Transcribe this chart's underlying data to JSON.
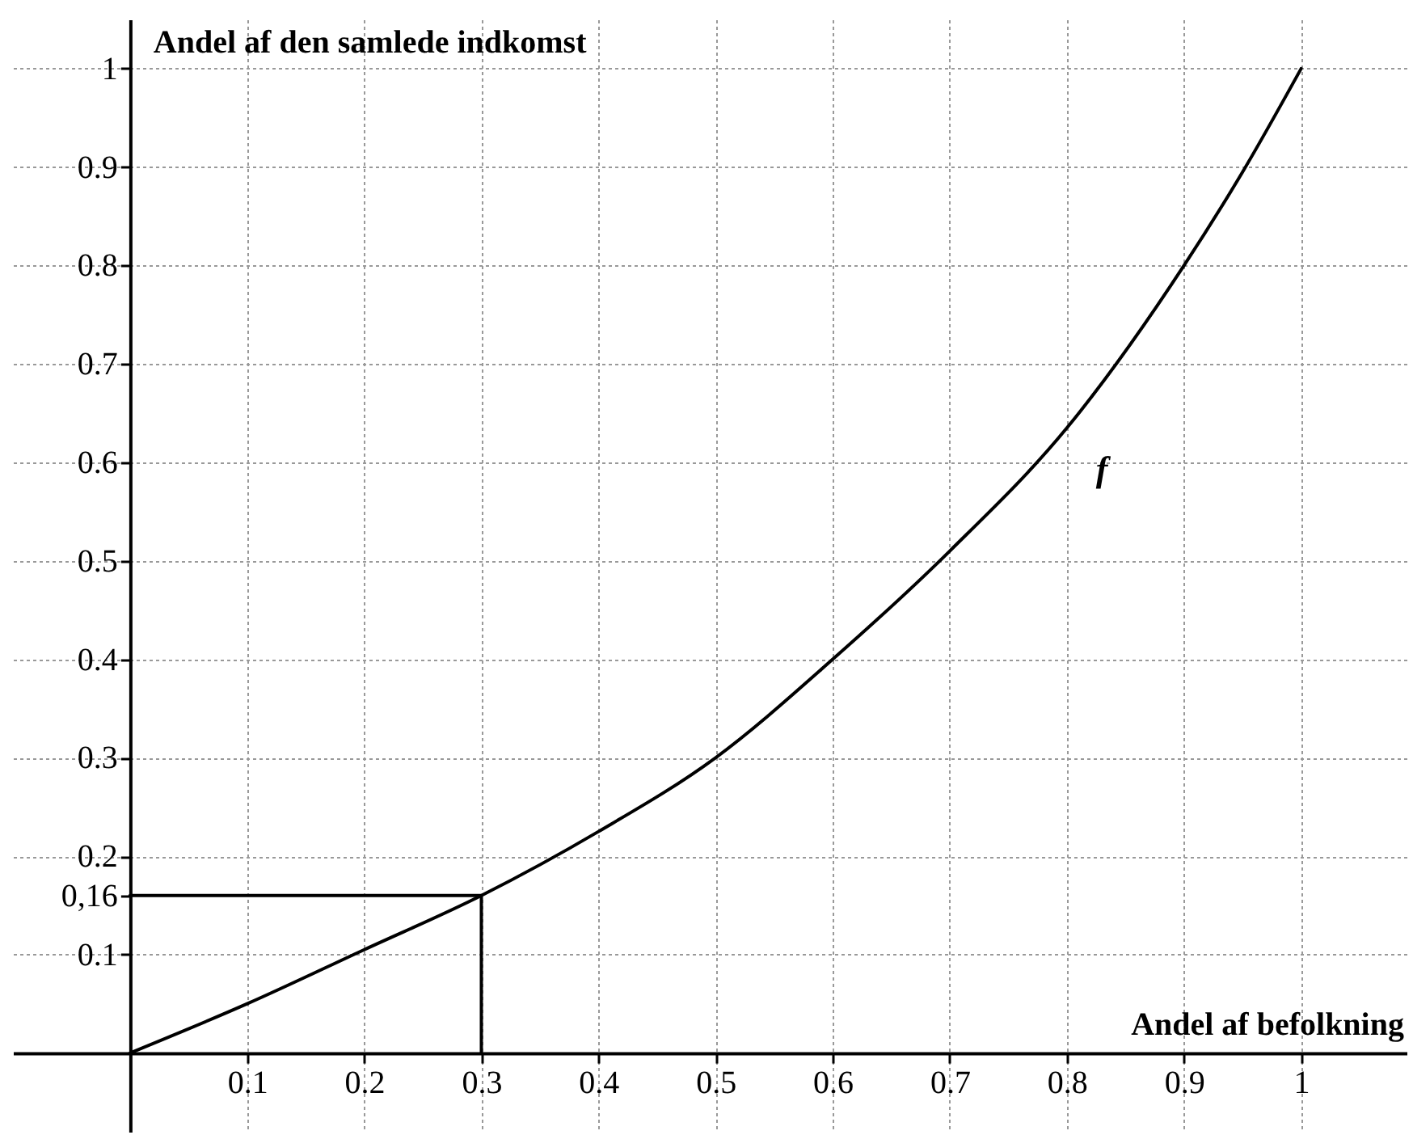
{
  "chart_data": {
    "type": "line",
    "xlabel": "Andel af befolkning",
    "ylabel": "Andel af den samlede indkomst",
    "xlim": [
      -0.1,
      1.09
    ],
    "ylim": [
      -0.08,
      1.05
    ],
    "xticks": [
      0.1,
      0.2,
      0.3,
      0.4,
      0.5,
      0.6,
      0.7,
      0.8,
      0.9,
      1
    ],
    "yticks": [
      0.1,
      {
        "value": 0.16,
        "label": "0,16"
      },
      0.2,
      0.3,
      0.4,
      0.5,
      0.6,
      0.7,
      0.8,
      0.9,
      1
    ],
    "grid": true,
    "series": [
      {
        "name": "f",
        "color": "#000000",
        "x": [
          0,
          0.1,
          0.2,
          0.3,
          0.4,
          0.5,
          0.6,
          0.7,
          0.8,
          0.9,
          0.95,
          1
        ],
        "values": [
          0,
          0.05,
          0.105,
          0.16,
          0.225,
          0.3,
          0.4,
          0.51,
          0.635,
          0.8,
          0.895,
          1
        ]
      },
      {
        "color": "#000000",
        "x": [
          0,
          0.3,
          0.3
        ],
        "values": [
          0.16,
          0.16,
          0
        ]
      }
    ]
  }
}
